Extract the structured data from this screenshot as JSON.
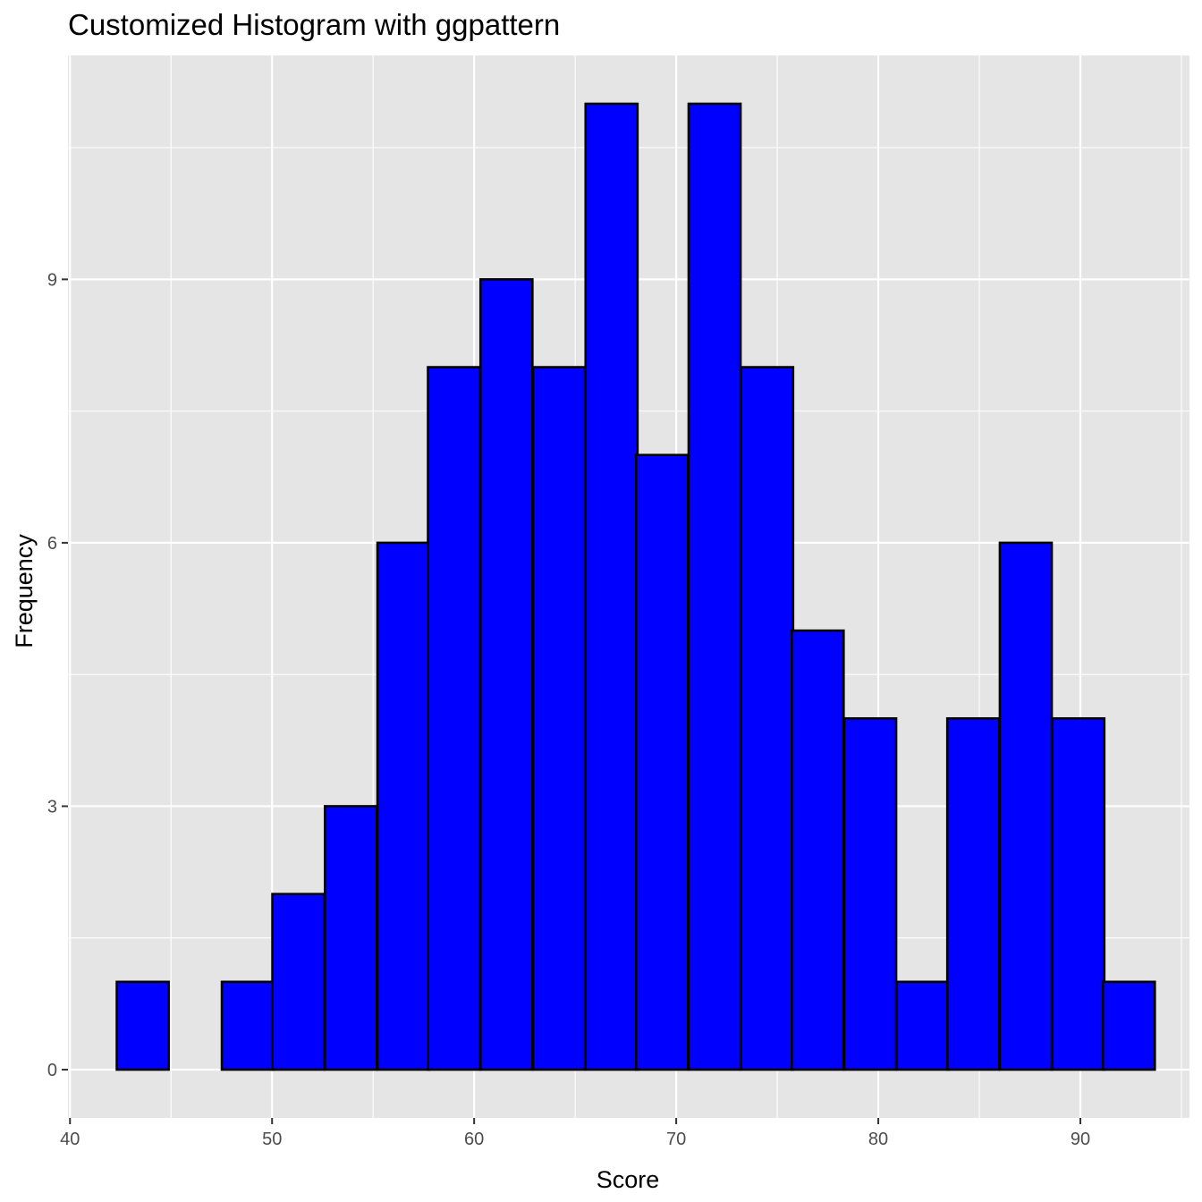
{
  "chart_data": {
    "type": "bar",
    "title": "Customized Histogram with ggpattern",
    "xlabel": "Score",
    "ylabel": "Frequency",
    "xlim": [
      39.9,
      95.4
    ],
    "ylim": [
      -0.55,
      11.55
    ],
    "x_ticks": [
      40,
      50,
      60,
      70,
      80,
      90
    ],
    "x_tick_labels": [
      "40",
      "50",
      "60",
      "70",
      "80",
      "90"
    ],
    "y_ticks": [
      0,
      3,
      6,
      9
    ],
    "y_tick_labels": [
      "0",
      "3",
      "6",
      "9"
    ],
    "bin_width": 2.57,
    "bin_centers": [
      43.6,
      46.2,
      48.8,
      51.3,
      53.9,
      56.5,
      59.0,
      61.6,
      64.2,
      66.8,
      69.3,
      71.9,
      74.5,
      77.0,
      79.6,
      82.2,
      84.7,
      87.3,
      89.9,
      92.4
    ],
    "values": [
      1,
      0,
      1,
      2,
      3,
      6,
      8,
      9,
      8,
      11,
      7,
      11,
      8,
      5,
      4,
      1,
      4,
      6,
      4,
      1
    ],
    "grid": true,
    "colors": {
      "panel_background": "#e5e5e5",
      "grid": "#ffffff",
      "bar_fill": "#0000ff",
      "bar_outline": "#000000",
      "tick_text": "#4d4d4d",
      "tick_mark": "#333333"
    }
  }
}
